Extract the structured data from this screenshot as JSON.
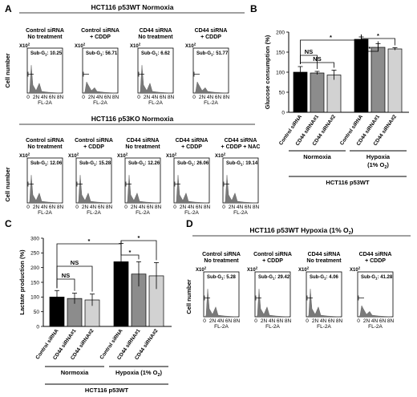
{
  "panels": {
    "A": {
      "letter": "A",
      "top": {
        "title": "HCT116 p53WT Normoxia",
        "ylabel": "Cell number",
        "xlabel": "FL-2A",
        "scale": "X10",
        "scale_exp": "2",
        "sub_prefix": "Sub-G",
        "sub_sub": "1",
        "ticks": [
          "0",
          "2N",
          "4N",
          "6N",
          "8N"
        ],
        "plots": [
          {
            "line1": "Control siRNA",
            "line2": "No treatment",
            "value": "10.25"
          },
          {
            "line1": "Control siRNA",
            "line2": "+ CDDP",
            "value": "56.71"
          },
          {
            "line1": "CD44 siRNA",
            "line2": "No treatment",
            "value": "6.62"
          },
          {
            "line1": "CD44 siRNA",
            "line2": "+ CDDP",
            "value": "51.77"
          }
        ]
      },
      "bottom": {
        "title": "HCT116 p53KO Normoxia",
        "ylabel": "Cell number",
        "xlabel": "FL-2A",
        "scale": "X10",
        "scale_exp": "2",
        "sub_prefix": "Sub-G",
        "sub_sub": "1",
        "ticks": [
          "0",
          "2N",
          "4N",
          "6N",
          "8N"
        ],
        "plots": [
          {
            "line1": "Control siRNA",
            "line2": "No treatment",
            "value": "12.06"
          },
          {
            "line1": "Control siRNA",
            "line2": "+ CDDP",
            "value": "15.28"
          },
          {
            "line1": "CD44 siRNA",
            "line2": "No treatment",
            "value": "12.26"
          },
          {
            "line1": "CD44 siRNA",
            "line2": "+ CDDP",
            "value": "26.06"
          },
          {
            "line1": "CD44 siRNA",
            "line2": "+ CDDP + NAC",
            "value": "19.14"
          }
        ]
      }
    },
    "D": {
      "letter": "D",
      "title_pre": "HCT116 p53WT Hypoxia (1% O",
      "title_sub": "2",
      "title_post": ")",
      "ylabel": "Cell number",
      "xlabel": "FL-2A",
      "scale": "X10",
      "scale_exp": "2",
      "sub_prefix": "Sub-G",
      "sub_sub": "1",
      "ticks": [
        "0",
        "2N",
        "4N",
        "6N",
        "8N"
      ],
      "plots": [
        {
          "line1": "Control siRNA",
          "line2": "No treatment",
          "value": "5.28"
        },
        {
          "line1": "Control siRNA",
          "line2": "+ CDDP",
          "value": "29.42"
        },
        {
          "line1": "CD44 siRNA",
          "line2": "No treatment",
          "value": "4.06"
        },
        {
          "line1": "CD44 siRNA",
          "line2": "+ CDDP",
          "value": "41.28"
        }
      ]
    },
    "B": {
      "letter": "B"
    },
    "C": {
      "letter": "C"
    }
  },
  "chart_data": [
    {
      "panel": "B",
      "type": "bar",
      "ylabel": "Glucose consumption (%)",
      "ylim": [
        0,
        200
      ],
      "yticks": [
        0,
        50,
        100,
        150,
        200
      ],
      "categories": [
        "Control siRNA",
        "CD44 siRNA#1",
        "CD44 siRNA#2",
        "Control siRNA",
        "CD44 siRNA#1",
        "CD44 siRNA#2"
      ],
      "values": [
        100,
        98,
        93,
        182,
        162,
        158
      ],
      "errors": [
        14,
        4,
        12,
        6,
        9,
        3
      ],
      "colors": [
        "#000000",
        "#8c8c8c",
        "#d2d2d2",
        "#000000",
        "#8c8c8c",
        "#d2d2d2"
      ],
      "groups": [
        {
          "label_pre": "Normoxia",
          "label_sub": "",
          "label_post": "",
          "label2": ""
        },
        {
          "label_pre": "Hypoxia",
          "label_sub": "",
          "label_post": "",
          "label2": "(1% O",
          "label2_sub": "2",
          "label2_post": ")"
        }
      ],
      "cell_line": "HCT116 p53WT",
      "annotations": [
        {
          "from": 0,
          "to": 1,
          "text": "NS"
        },
        {
          "from": 0,
          "to": 2,
          "text": "NS"
        },
        {
          "from": 0,
          "to": 3,
          "text": "*"
        },
        {
          "from": 3,
          "to": 4,
          "text": "*"
        },
        {
          "from": 3,
          "to": 5,
          "text": "*"
        }
      ]
    },
    {
      "panel": "C",
      "type": "bar",
      "ylabel": "Lactate production (%)",
      "ylim": [
        0,
        300
      ],
      "yticks": [
        0,
        50,
        100,
        150,
        200,
        250,
        300
      ],
      "categories": [
        "Control siRNA",
        "CD44 siRNA#1",
        "CD44 siRNA#2",
        "Control siRNA",
        "CD44 siRNA#1",
        "CD44 siRNA#2"
      ],
      "values": [
        100,
        95,
        90,
        220,
        178,
        172
      ],
      "errors": [
        22,
        18,
        20,
        62,
        42,
        45
      ],
      "colors": [
        "#000000",
        "#8c8c8c",
        "#d2d2d2",
        "#000000",
        "#8c8c8c",
        "#d2d2d2"
      ],
      "groups": [
        {
          "label_pre": "Normoxia",
          "label2": ""
        },
        {
          "label_pre": "Hypoxia (1% O",
          "label_sub": "2",
          "label_post": ")",
          "label2": ""
        }
      ],
      "cell_line": "HCT116 p53WT",
      "annotations": [
        {
          "from": 0,
          "to": 1,
          "text": "NS"
        },
        {
          "from": 0,
          "to": 2,
          "text": "NS"
        },
        {
          "from": 0,
          "to": 3,
          "text": "*"
        },
        {
          "from": 3,
          "to": 4,
          "text": "*"
        },
        {
          "from": 3,
          "to": 5,
          "text": "*"
        }
      ]
    }
  ]
}
